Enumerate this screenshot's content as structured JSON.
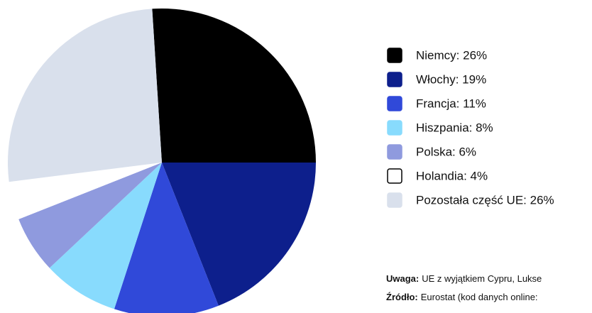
{
  "chart_data": {
    "type": "pie",
    "categories": [
      "Niemcy: 26%",
      "Włochy: 19%",
      "Francja: 11%",
      "Hiszpania: 8%",
      "Polska: 6%",
      "Holandia: 4%",
      "Pozostała część UE: 26%"
    ],
    "values": [
      26,
      19,
      11,
      8,
      6,
      4,
      26
    ],
    "colors": [
      "#000000",
      "#0d1f8c",
      "#3049d9",
      "#88dbfd",
      "#8f9ade",
      "#ffffff",
      "#d9e0ec"
    ],
    "notes": [
      {
        "label": "Uwaga:",
        "text": "UE z wyjątkiem Cypru, Lukse"
      },
      {
        "label": "Źródło:",
        "text": "Eurostat (kod danych online:"
      }
    ]
  }
}
